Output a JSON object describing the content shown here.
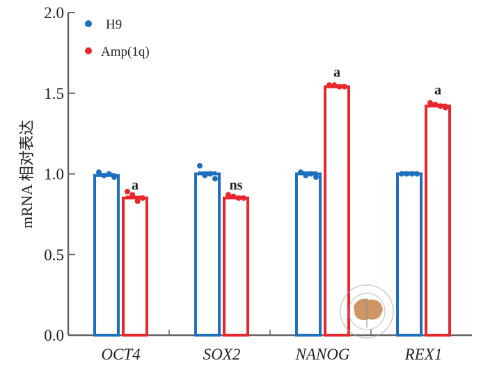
{
  "chart_data": {
    "type": "bar",
    "title": "",
    "xlabel": "",
    "ylabel": "mRNA 相对表达",
    "ylim": [
      0,
      2.0
    ],
    "yticks": [
      0.0,
      0.5,
      1.0,
      1.5,
      2.0
    ],
    "ytick_labels": [
      "0.0",
      "0.5",
      "1.0",
      "1.5",
      "2.0"
    ],
    "categories": [
      "OCT4",
      "SOX2",
      "NANOG",
      "REX1"
    ],
    "series": [
      {
        "name": "H9",
        "color": "#1f6fbf",
        "values": [
          0.99,
          1.0,
          1.0,
          1.0
        ],
        "points": [
          [
            1.01,
            0.99,
            1.0,
            0.98
          ],
          [
            1.05,
            0.99,
            1.0,
            0.97
          ],
          [
            1.01,
            0.99,
            1.0,
            0.98
          ],
          [
            1.0,
            1.0,
            1.0,
            1.0
          ]
        ]
      },
      {
        "name": "Amp(1q)",
        "color": "#e8262b",
        "values": [
          0.85,
          0.85,
          1.54,
          1.42
        ],
        "points": [
          [
            0.89,
            0.87,
            0.83,
            0.85
          ],
          [
            0.87,
            0.86,
            0.85,
            0.85
          ],
          [
            1.55,
            1.55,
            1.54,
            1.54
          ],
          [
            1.44,
            1.43,
            1.42,
            1.41
          ]
        ]
      }
    ],
    "significance": [
      "a",
      "ns",
      "a",
      "a"
    ],
    "legend_position": "top-left",
    "grid": false
  }
}
